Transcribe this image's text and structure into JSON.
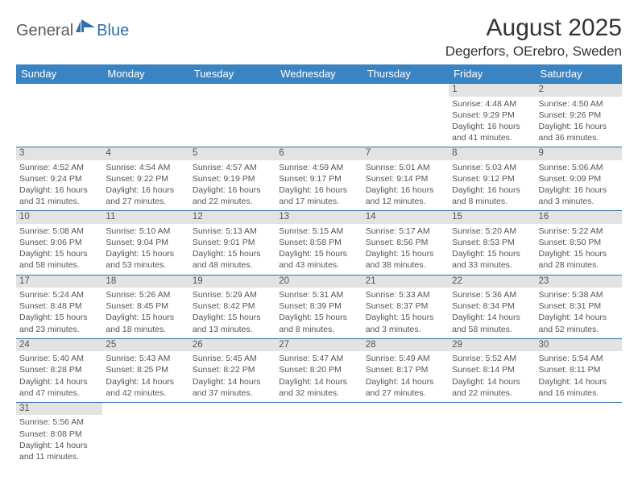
{
  "logo": {
    "part1": "General",
    "part2": "Blue"
  },
  "title": "August 2025",
  "location": "Degerfors, OErebro, Sweden",
  "header_bg": "#3b84c4",
  "header_fg": "#ffffff",
  "daynum_bg": "#e3e3e3",
  "rule_color": "#2f6fab",
  "text_color": "#555555",
  "days": [
    "Sunday",
    "Monday",
    "Tuesday",
    "Wednesday",
    "Thursday",
    "Friday",
    "Saturday"
  ],
  "weeks": [
    [
      null,
      null,
      null,
      null,
      null,
      {
        "n": "1",
        "sr": "Sunrise: 4:48 AM",
        "ss": "Sunset: 9:29 PM",
        "d1": "Daylight: 16 hours",
        "d2": "and 41 minutes."
      },
      {
        "n": "2",
        "sr": "Sunrise: 4:50 AM",
        "ss": "Sunset: 9:26 PM",
        "d1": "Daylight: 16 hours",
        "d2": "and 36 minutes."
      }
    ],
    [
      {
        "n": "3",
        "sr": "Sunrise: 4:52 AM",
        "ss": "Sunset: 9:24 PM",
        "d1": "Daylight: 16 hours",
        "d2": "and 31 minutes."
      },
      {
        "n": "4",
        "sr": "Sunrise: 4:54 AM",
        "ss": "Sunset: 9:22 PM",
        "d1": "Daylight: 16 hours",
        "d2": "and 27 minutes."
      },
      {
        "n": "5",
        "sr": "Sunrise: 4:57 AM",
        "ss": "Sunset: 9:19 PM",
        "d1": "Daylight: 16 hours",
        "d2": "and 22 minutes."
      },
      {
        "n": "6",
        "sr": "Sunrise: 4:59 AM",
        "ss": "Sunset: 9:17 PM",
        "d1": "Daylight: 16 hours",
        "d2": "and 17 minutes."
      },
      {
        "n": "7",
        "sr": "Sunrise: 5:01 AM",
        "ss": "Sunset: 9:14 PM",
        "d1": "Daylight: 16 hours",
        "d2": "and 12 minutes."
      },
      {
        "n": "8",
        "sr": "Sunrise: 5:03 AM",
        "ss": "Sunset: 9:12 PM",
        "d1": "Daylight: 16 hours",
        "d2": "and 8 minutes."
      },
      {
        "n": "9",
        "sr": "Sunrise: 5:06 AM",
        "ss": "Sunset: 9:09 PM",
        "d1": "Daylight: 16 hours",
        "d2": "and 3 minutes."
      }
    ],
    [
      {
        "n": "10",
        "sr": "Sunrise: 5:08 AM",
        "ss": "Sunset: 9:06 PM",
        "d1": "Daylight: 15 hours",
        "d2": "and 58 minutes."
      },
      {
        "n": "11",
        "sr": "Sunrise: 5:10 AM",
        "ss": "Sunset: 9:04 PM",
        "d1": "Daylight: 15 hours",
        "d2": "and 53 minutes."
      },
      {
        "n": "12",
        "sr": "Sunrise: 5:13 AM",
        "ss": "Sunset: 9:01 PM",
        "d1": "Daylight: 15 hours",
        "d2": "and 48 minutes."
      },
      {
        "n": "13",
        "sr": "Sunrise: 5:15 AM",
        "ss": "Sunset: 8:58 PM",
        "d1": "Daylight: 15 hours",
        "d2": "and 43 minutes."
      },
      {
        "n": "14",
        "sr": "Sunrise: 5:17 AM",
        "ss": "Sunset: 8:56 PM",
        "d1": "Daylight: 15 hours",
        "d2": "and 38 minutes."
      },
      {
        "n": "15",
        "sr": "Sunrise: 5:20 AM",
        "ss": "Sunset: 8:53 PM",
        "d1": "Daylight: 15 hours",
        "d2": "and 33 minutes."
      },
      {
        "n": "16",
        "sr": "Sunrise: 5:22 AM",
        "ss": "Sunset: 8:50 PM",
        "d1": "Daylight: 15 hours",
        "d2": "and 28 minutes."
      }
    ],
    [
      {
        "n": "17",
        "sr": "Sunrise: 5:24 AM",
        "ss": "Sunset: 8:48 PM",
        "d1": "Daylight: 15 hours",
        "d2": "and 23 minutes."
      },
      {
        "n": "18",
        "sr": "Sunrise: 5:26 AM",
        "ss": "Sunset: 8:45 PM",
        "d1": "Daylight: 15 hours",
        "d2": "and 18 minutes."
      },
      {
        "n": "19",
        "sr": "Sunrise: 5:29 AM",
        "ss": "Sunset: 8:42 PM",
        "d1": "Daylight: 15 hours",
        "d2": "and 13 minutes."
      },
      {
        "n": "20",
        "sr": "Sunrise: 5:31 AM",
        "ss": "Sunset: 8:39 PM",
        "d1": "Daylight: 15 hours",
        "d2": "and 8 minutes."
      },
      {
        "n": "21",
        "sr": "Sunrise: 5:33 AM",
        "ss": "Sunset: 8:37 PM",
        "d1": "Daylight: 15 hours",
        "d2": "and 3 minutes."
      },
      {
        "n": "22",
        "sr": "Sunrise: 5:36 AM",
        "ss": "Sunset: 8:34 PM",
        "d1": "Daylight: 14 hours",
        "d2": "and 58 minutes."
      },
      {
        "n": "23",
        "sr": "Sunrise: 5:38 AM",
        "ss": "Sunset: 8:31 PM",
        "d1": "Daylight: 14 hours",
        "d2": "and 52 minutes."
      }
    ],
    [
      {
        "n": "24",
        "sr": "Sunrise: 5:40 AM",
        "ss": "Sunset: 8:28 PM",
        "d1": "Daylight: 14 hours",
        "d2": "and 47 minutes."
      },
      {
        "n": "25",
        "sr": "Sunrise: 5:43 AM",
        "ss": "Sunset: 8:25 PM",
        "d1": "Daylight: 14 hours",
        "d2": "and 42 minutes."
      },
      {
        "n": "26",
        "sr": "Sunrise: 5:45 AM",
        "ss": "Sunset: 8:22 PM",
        "d1": "Daylight: 14 hours",
        "d2": "and 37 minutes."
      },
      {
        "n": "27",
        "sr": "Sunrise: 5:47 AM",
        "ss": "Sunset: 8:20 PM",
        "d1": "Daylight: 14 hours",
        "d2": "and 32 minutes."
      },
      {
        "n": "28",
        "sr": "Sunrise: 5:49 AM",
        "ss": "Sunset: 8:17 PM",
        "d1": "Daylight: 14 hours",
        "d2": "and 27 minutes."
      },
      {
        "n": "29",
        "sr": "Sunrise: 5:52 AM",
        "ss": "Sunset: 8:14 PM",
        "d1": "Daylight: 14 hours",
        "d2": "and 22 minutes."
      },
      {
        "n": "30",
        "sr": "Sunrise: 5:54 AM",
        "ss": "Sunset: 8:11 PM",
        "d1": "Daylight: 14 hours",
        "d2": "and 16 minutes."
      }
    ],
    [
      {
        "n": "31",
        "sr": "Sunrise: 5:56 AM",
        "ss": "Sunset: 8:08 PM",
        "d1": "Daylight: 14 hours",
        "d2": "and 11 minutes."
      },
      null,
      null,
      null,
      null,
      null,
      null
    ]
  ]
}
